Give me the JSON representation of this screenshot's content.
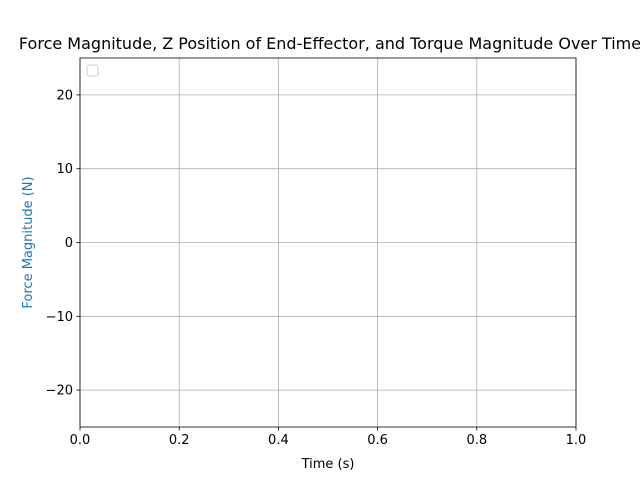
{
  "chart_data": {
    "type": "line",
    "title": "Force Magnitude, Z Position of End-Effector, and Torque Magnitude Over Time",
    "xlabel": "Time (s)",
    "ylabel": "Force Magnitude (N)",
    "xlim": [
      0,
      1
    ],
    "ylim": [
      -25,
      25
    ],
    "x_ticks": [
      0,
      0.2,
      0.4,
      0.6,
      0.8,
      1
    ],
    "x_tick_labels": [
      "0.0",
      "0.2",
      "0.4",
      "0.6",
      "0.8",
      "1.0"
    ],
    "y_ticks": [
      -20,
      -10,
      0,
      10,
      20
    ],
    "y_tick_labels": [
      "−20",
      "−10",
      "0",
      "10",
      "20"
    ],
    "series": [],
    "grid": true,
    "legend": "top-left, empty",
    "colors": {
      "ylabel": "#1f77b4",
      "grid": "#b0b0b0",
      "axes": "#000000",
      "legend_border": "#cccccc"
    }
  }
}
